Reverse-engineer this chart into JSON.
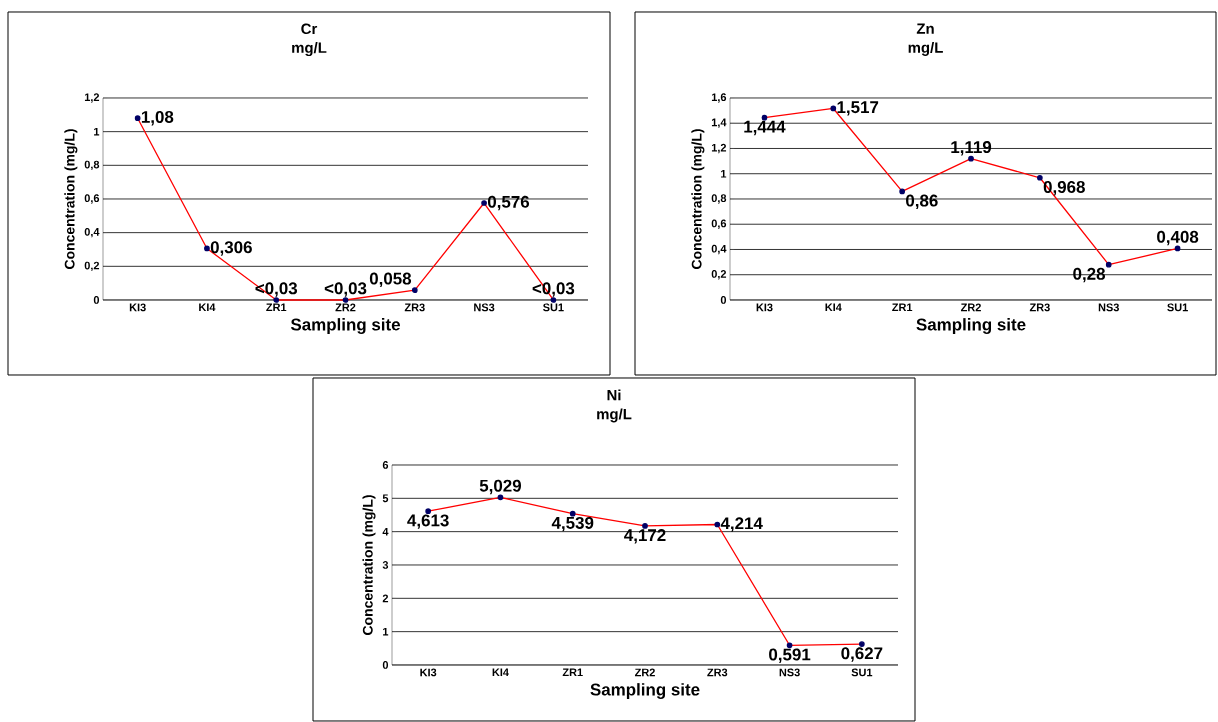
{
  "chart_data": [
    {
      "type": "line",
      "title": "Cr",
      "subtitle": "mg/L",
      "xlabel": "Sampling site",
      "ylabel": "Concentration (mg/L)",
      "categories": [
        "KI3",
        "KI4",
        "ZR1",
        "ZR2",
        "ZR3",
        "NS3",
        "SU1"
      ],
      "series": [
        {
          "color": "#ff0000",
          "values": [
            1.08,
            0.306,
            0,
            0,
            0.058,
            0.576,
            0
          ],
          "value_labels": [
            "1,08",
            "0,306",
            "<0,03",
            "<0,03",
            "0,058",
            "0,576",
            "<0,03"
          ]
        }
      ],
      "ylim": [
        0,
        1.2
      ],
      "yticks": [
        0,
        {
          "value": 0.2,
          "label": "0,2"
        },
        {
          "value": 0.4,
          "label": "0,4"
        },
        {
          "value": 0.6,
          "label": "0,6"
        },
        {
          "value": 0.8,
          "label": "0,8"
        },
        1,
        {
          "value": 1.2,
          "label": "1,2"
        }
      ],
      "grid": "y",
      "marker": "circle",
      "line_style": "solid"
    },
    {
      "type": "line",
      "title": "Zn",
      "subtitle": "mg/L",
      "xlabel": "Sampling site",
      "ylabel": "Concentration (mg/L)",
      "categories": [
        "KI3",
        "KI4",
        "ZR1",
        "ZR2",
        "ZR3",
        "NS3",
        "SU1"
      ],
      "series": [
        {
          "color": "#ff0000",
          "values": [
            1.444,
            1.517,
            0.86,
            1.119,
            0.968,
            0.28,
            0.408
          ],
          "value_labels": [
            "1,444",
            "1,517",
            "0,86",
            "1,119",
            "0,968",
            "0,28",
            "0,408"
          ]
        }
      ],
      "ylim": [
        0,
        1.6
      ],
      "yticks": [
        0,
        {
          "value": 0.2,
          "label": "0,2"
        },
        {
          "value": 0.4,
          "label": "0,4"
        },
        {
          "value": 0.6,
          "label": "0,6"
        },
        {
          "value": 0.8,
          "label": "0,8"
        },
        1,
        {
          "value": 1.2,
          "label": "1,2"
        },
        {
          "value": 1.4,
          "label": "1,4"
        },
        {
          "value": 1.6,
          "label": "1,6"
        }
      ],
      "grid": "y",
      "marker": "circle",
      "line_style": "solid"
    },
    {
      "type": "line",
      "title": "Ni",
      "subtitle": "mg/L",
      "xlabel": "Sampling site",
      "ylabel": "Concentration (mg/L)",
      "categories": [
        "KI3",
        "KI4",
        "ZR1",
        "ZR2",
        "ZR3",
        "NS3",
        "SU1"
      ],
      "series": [
        {
          "color": "#ff0000",
          "values": [
            4.613,
            5.029,
            4.539,
            4.172,
            4.214,
            0.591,
            0.627
          ],
          "value_labels": [
            "4,613",
            "5,029",
            "4,539",
            "4,172",
            "4,214",
            "0,591",
            "0,627"
          ]
        }
      ],
      "ylim": [
        0,
        6
      ],
      "yticks": [
        0,
        1,
        2,
        3,
        4,
        5,
        6
      ],
      "grid": "y",
      "marker": "circle",
      "line_style": "solid"
    }
  ]
}
